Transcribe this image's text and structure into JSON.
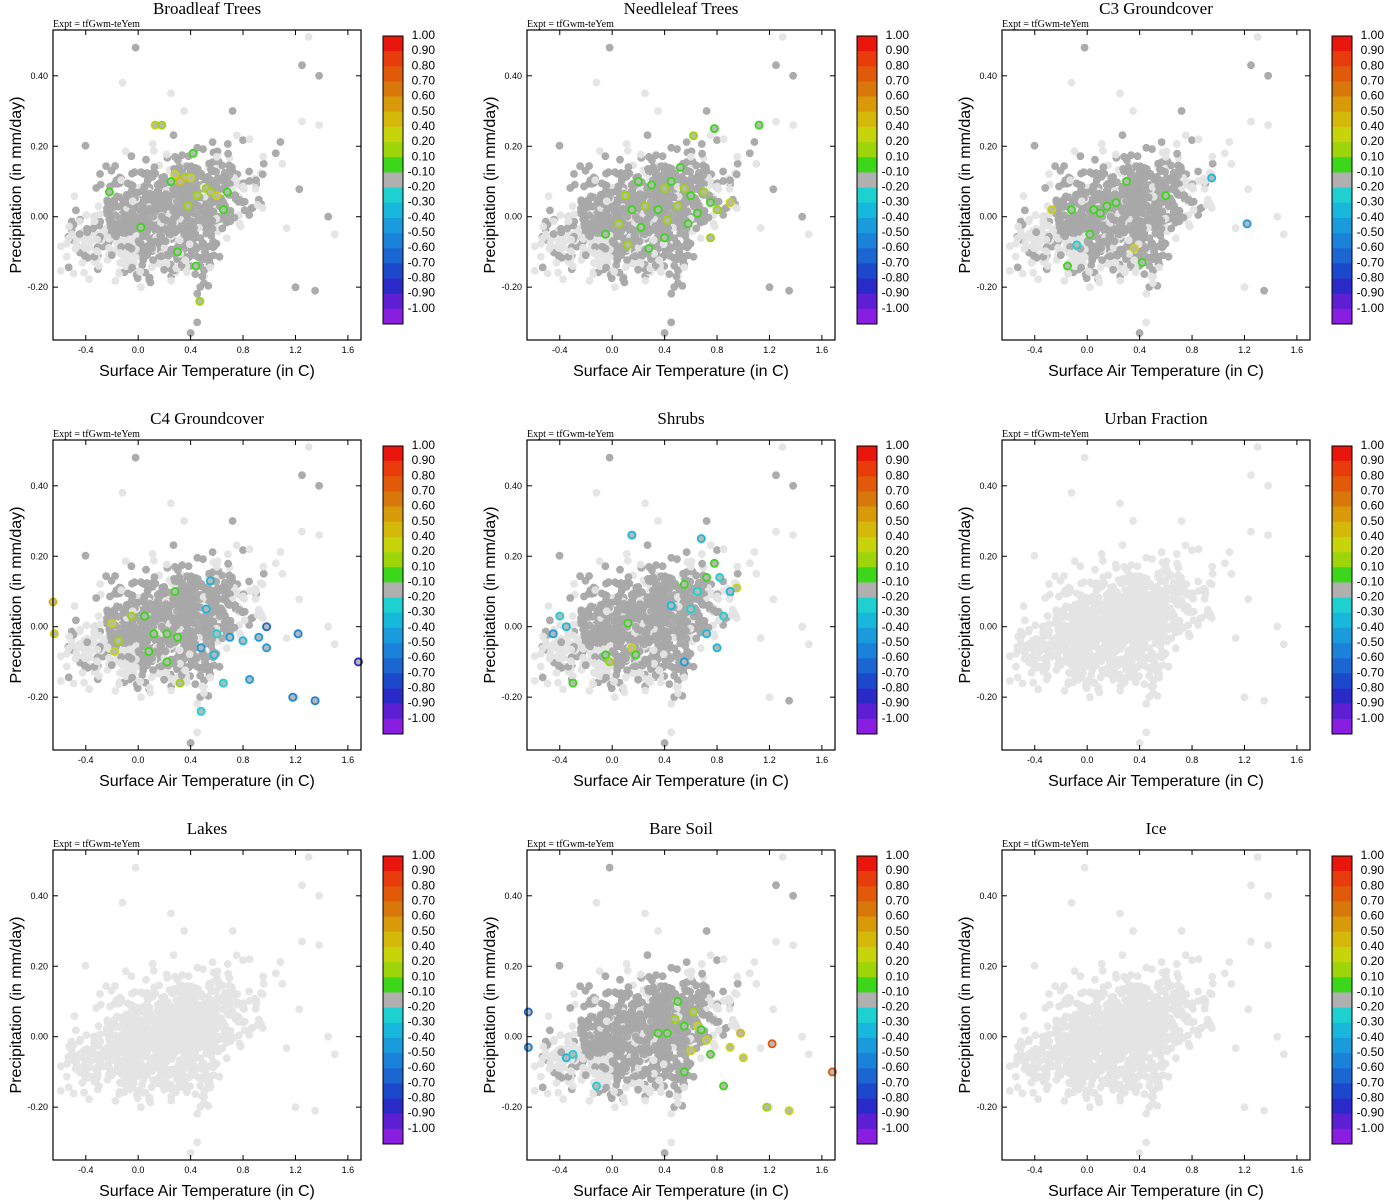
{
  "common": {
    "expt_label": "Expt = tfGwm-teYem",
    "xlabel": "Surface Air Temperature (in C)",
    "ylabel": "Precipitation (in mm/day)",
    "xlim": [
      -0.65,
      1.7
    ],
    "ylim": [
      -0.35,
      0.53
    ],
    "xticks": [
      "-0.4",
      "0.0",
      "0.4",
      "0.8",
      "1.2",
      "1.6"
    ],
    "yticks": [
      "0.40",
      "0.20",
      "0.00",
      "-0.20"
    ],
    "colorbar": {
      "labels": [
        "1.00",
        "0.90",
        "0.80",
        "0.70",
        "0.60",
        "0.50",
        "0.40",
        "0.20",
        "0.10",
        "-0.10",
        "-0.20",
        "-0.30",
        "-0.40",
        "-0.50",
        "-0.60",
        "-0.70",
        "-0.80",
        "-0.90",
        "-1.00"
      ],
      "colors": [
        "#e8160c",
        "#e83c0c",
        "#e05a0a",
        "#d9780a",
        "#d99a0a",
        "#d4b80a",
        "#c8d40a",
        "#9ed40a",
        "#3cd61a",
        "#b0b0b0",
        "#1ed0d0",
        "#18b8dc",
        "#1a9cdc",
        "#1a82d8",
        "#1c66d2",
        "#1c48cc",
        "#2a2ac8",
        "#5e1ed4",
        "#8a1ee0"
      ]
    },
    "cloud_colors": {
      "background": "#e4e4e4",
      "relevant": "#a8a8a8"
    }
  },
  "chart_data": [
    {
      "type": "scatter",
      "title": "Broadleaf Trees",
      "mode": "mixed",
      "highlights": [
        [
          0.13,
          0.26,
          "#c8d40a"
        ],
        [
          0.18,
          0.26,
          "#9ed40a"
        ],
        [
          0.42,
          0.18,
          "#3cd61a"
        ],
        [
          0.28,
          0.12,
          "#c8d40a"
        ],
        [
          0.35,
          0.11,
          "#9ed40a"
        ],
        [
          0.25,
          0.1,
          "#3cd61a"
        ],
        [
          0.32,
          0.1,
          "#d4b80a"
        ],
        [
          0.4,
          0.11,
          "#c8d40a"
        ],
        [
          0.52,
          0.08,
          "#9ed40a"
        ],
        [
          0.55,
          0.07,
          "#9ed40a"
        ],
        [
          0.6,
          0.06,
          "#c8d40a"
        ],
        [
          0.68,
          0.07,
          "#3cd61a"
        ],
        [
          0.38,
          0.03,
          "#9ed40a"
        ],
        [
          0.45,
          0.06,
          "#9ed40a"
        ],
        [
          -0.22,
          0.07,
          "#3cd61a"
        ],
        [
          0.02,
          -0.03,
          "#3cd61a"
        ],
        [
          0.3,
          -0.1,
          "#3cd61a"
        ],
        [
          0.44,
          -0.14,
          "#3cd61a"
        ],
        [
          0.47,
          -0.24,
          "#9ed40a"
        ],
        [
          0.65,
          0.02,
          "#3cd61a"
        ]
      ]
    },
    {
      "type": "scatter",
      "title": "Needleleaf Trees",
      "mode": "mixed",
      "highlights": [
        [
          0.78,
          0.25,
          "#3cd61a"
        ],
        [
          1.12,
          0.26,
          "#3cd61a"
        ],
        [
          0.62,
          0.23,
          "#9ed40a"
        ],
        [
          0.1,
          0.06,
          "#9ed40a"
        ],
        [
          0.2,
          0.1,
          "#3cd61a"
        ],
        [
          0.3,
          0.09,
          "#3cd61a"
        ],
        [
          0.4,
          0.08,
          "#9ed40a"
        ],
        [
          0.45,
          0.1,
          "#3cd61a"
        ],
        [
          0.55,
          0.08,
          "#9ed40a"
        ],
        [
          0.6,
          0.06,
          "#3cd61a"
        ],
        [
          0.7,
          0.07,
          "#9ed40a"
        ],
        [
          0.75,
          0.04,
          "#3cd61a"
        ],
        [
          0.9,
          0.04,
          "#c8d40a"
        ],
        [
          0.15,
          0.02,
          "#3cd61a"
        ],
        [
          0.25,
          0.03,
          "#9ed40a"
        ],
        [
          0.35,
          0.02,
          "#3cd61a"
        ],
        [
          0.5,
          0.03,
          "#9ed40a"
        ],
        [
          0.65,
          0.01,
          "#3cd61a"
        ],
        [
          0.8,
          0.02,
          "#9ed40a"
        ],
        [
          -0.05,
          -0.05,
          "#3cd61a"
        ],
        [
          0.05,
          -0.02,
          "#9ed40a"
        ],
        [
          0.22,
          -0.03,
          "#3cd61a"
        ],
        [
          0.42,
          -0.01,
          "#9ed40a"
        ],
        [
          0.58,
          -0.02,
          "#3cd61a"
        ],
        [
          0.75,
          -0.06,
          "#9ed40a"
        ],
        [
          0.28,
          -0.09,
          "#3cd61a"
        ],
        [
          0.4,
          -0.06,
          "#3cd61a"
        ],
        [
          0.12,
          -0.08,
          "#9ed40a"
        ],
        [
          0.52,
          0.14,
          "#3cd61a"
        ]
      ]
    },
    {
      "type": "scatter",
      "title": "C3 Groundcover",
      "mode": "mixed",
      "highlights": [
        [
          -0.27,
          0.02,
          "#c8d40a"
        ],
        [
          -0.12,
          0.02,
          "#3cd61a"
        ],
        [
          0.05,
          0.02,
          "#3cd61a"
        ],
        [
          0.1,
          0.01,
          "#3cd61a"
        ],
        [
          0.15,
          0.03,
          "#3cd61a"
        ],
        [
          0.22,
          0.04,
          "#3cd61a"
        ],
        [
          0.02,
          -0.05,
          "#3cd61a"
        ],
        [
          0.36,
          -0.09,
          "#c8d40a"
        ],
        [
          0.42,
          -0.13,
          "#3cd61a"
        ],
        [
          -0.15,
          -0.14,
          "#3cd61a"
        ],
        [
          0.6,
          0.06,
          "#3cd61a"
        ],
        [
          0.95,
          0.11,
          "#18b8dc"
        ],
        [
          1.22,
          -0.02,
          "#1a9cdc"
        ],
        [
          -0.08,
          -0.08,
          "#1ed0d0"
        ],
        [
          0.3,
          0.1,
          "#3cd61a"
        ]
      ]
    },
    {
      "type": "scatter",
      "title": "C4 Groundcover",
      "mode": "mixed",
      "highlights": [
        [
          -0.65,
          0.07,
          "#d4b80a"
        ],
        [
          -0.64,
          -0.02,
          "#c8d40a"
        ],
        [
          -0.2,
          0.01,
          "#c8d40a"
        ],
        [
          -0.15,
          -0.04,
          "#9ed40a"
        ],
        [
          -0.18,
          -0.07,
          "#c8d40a"
        ],
        [
          -0.05,
          0.03,
          "#9ed40a"
        ],
        [
          0.05,
          0.03,
          "#3cd61a"
        ],
        [
          0.12,
          -0.02,
          "#3cd61a"
        ],
        [
          0.22,
          -0.02,
          "#3cd61a"
        ],
        [
          0.3,
          -0.03,
          "#3cd61a"
        ],
        [
          0.28,
          0.1,
          "#3cd61a"
        ],
        [
          0.08,
          -0.07,
          "#3cd61a"
        ],
        [
          0.22,
          -0.1,
          "#3cd61a"
        ],
        [
          0.32,
          -0.16,
          "#9ed40a"
        ],
        [
          0.55,
          0.13,
          "#18b8dc"
        ],
        [
          0.6,
          -0.02,
          "#1ed0d0"
        ],
        [
          0.7,
          -0.03,
          "#1a9cdc"
        ],
        [
          0.8,
          -0.04,
          "#18b8dc"
        ],
        [
          0.92,
          -0.03,
          "#1a9cdc"
        ],
        [
          0.98,
          -0.06,
          "#1a9cdc"
        ],
        [
          1.22,
          -0.02,
          "#1a82d8"
        ],
        [
          0.98,
          0.0,
          "#1c66d2"
        ],
        [
          1.68,
          -0.1,
          "#2a2ac8"
        ],
        [
          0.48,
          -0.06,
          "#1a9cdc"
        ],
        [
          0.58,
          -0.08,
          "#18b8dc"
        ],
        [
          0.65,
          -0.16,
          "#1ed0d0"
        ],
        [
          0.48,
          -0.24,
          "#1ed0d0"
        ],
        [
          0.85,
          -0.15,
          "#1a9cdc"
        ],
        [
          1.18,
          -0.2,
          "#1a82d8"
        ],
        [
          1.35,
          -0.21,
          "#1a82d8"
        ],
        [
          0.52,
          0.05,
          "#18b8dc"
        ]
      ]
    },
    {
      "type": "scatter",
      "title": "Shrubs",
      "mode": "mixed",
      "highlights": [
        [
          0.15,
          0.26,
          "#18b8dc"
        ],
        [
          0.68,
          0.25,
          "#18b8dc"
        ],
        [
          0.78,
          0.18,
          "#3cd61a"
        ],
        [
          0.72,
          0.14,
          "#3cd61a"
        ],
        [
          0.82,
          0.14,
          "#1ed0d0"
        ],
        [
          0.65,
          0.1,
          "#1ed0d0"
        ],
        [
          0.95,
          0.11,
          "#c8d40a"
        ],
        [
          0.55,
          0.12,
          "#3cd61a"
        ],
        [
          -0.45,
          -0.02,
          "#1a9cdc"
        ],
        [
          -0.4,
          0.03,
          "#1ed0d0"
        ],
        [
          -0.35,
          0.0,
          "#18b8dc"
        ],
        [
          -0.05,
          -0.08,
          "#3cd61a"
        ],
        [
          -0.02,
          -0.1,
          "#9ed40a"
        ],
        [
          0.15,
          -0.06,
          "#c8d40a"
        ],
        [
          0.12,
          0.01,
          "#3cd61a"
        ],
        [
          0.18,
          -0.08,
          "#3cd61a"
        ],
        [
          -0.3,
          -0.16,
          "#3cd61a"
        ],
        [
          0.72,
          -0.02,
          "#18b8dc"
        ],
        [
          0.8,
          -0.06,
          "#18b8dc"
        ],
        [
          0.85,
          0.03,
          "#1ed0d0"
        ],
        [
          0.6,
          0.05,
          "#1ed0d0"
        ],
        [
          0.45,
          0.06,
          "#18b8dc"
        ],
        [
          0.55,
          -0.1,
          "#1a9cdc"
        ],
        [
          0.9,
          0.1,
          "#18b8dc"
        ]
      ]
    },
    {
      "type": "scatter",
      "title": "Urban Fraction",
      "mode": "background",
      "highlights": []
    },
    {
      "type": "scatter",
      "title": "Lakes",
      "mode": "background",
      "highlights": []
    },
    {
      "type": "scatter",
      "title": "Bare Soil",
      "mode": "mixed",
      "highlights": [
        [
          -0.64,
          0.07,
          "#1c66d2"
        ],
        [
          -0.64,
          -0.03,
          "#1a82d8"
        ],
        [
          -0.12,
          -0.14,
          "#1ed0d0"
        ],
        [
          -0.35,
          -0.06,
          "#18b8dc"
        ],
        [
          -0.3,
          -0.05,
          "#1ed0d0"
        ],
        [
          0.5,
          0.1,
          "#3cd61a"
        ],
        [
          0.62,
          0.07,
          "#9ed40a"
        ],
        [
          0.55,
          0.03,
          "#3cd61a"
        ],
        [
          0.65,
          0.03,
          "#c8d40a"
        ],
        [
          0.68,
          0.02,
          "#3cd61a"
        ],
        [
          0.72,
          -0.01,
          "#c8d40a"
        ],
        [
          0.35,
          0.01,
          "#3cd61a"
        ],
        [
          0.42,
          0.01,
          "#3cd61a"
        ],
        [
          0.6,
          -0.04,
          "#c8d40a"
        ],
        [
          0.75,
          -0.05,
          "#3cd61a"
        ],
        [
          0.9,
          -0.03,
          "#c8d40a"
        ],
        [
          0.98,
          0.01,
          "#d4b80a"
        ],
        [
          1.0,
          -0.06,
          "#c8d40a"
        ],
        [
          1.22,
          -0.02,
          "#e05a0a"
        ],
        [
          1.68,
          -0.1,
          "#e05a0a"
        ],
        [
          0.55,
          -0.1,
          "#3cd61a"
        ],
        [
          0.85,
          -0.14,
          "#3cd61a"
        ],
        [
          1.18,
          -0.2,
          "#9ed40a"
        ],
        [
          1.35,
          -0.21,
          "#c8d40a"
        ],
        [
          0.48,
          0.05,
          "#9ed40a"
        ]
      ]
    },
    {
      "type": "scatter",
      "title": "Ice",
      "mode": "background",
      "highlights": []
    }
  ]
}
